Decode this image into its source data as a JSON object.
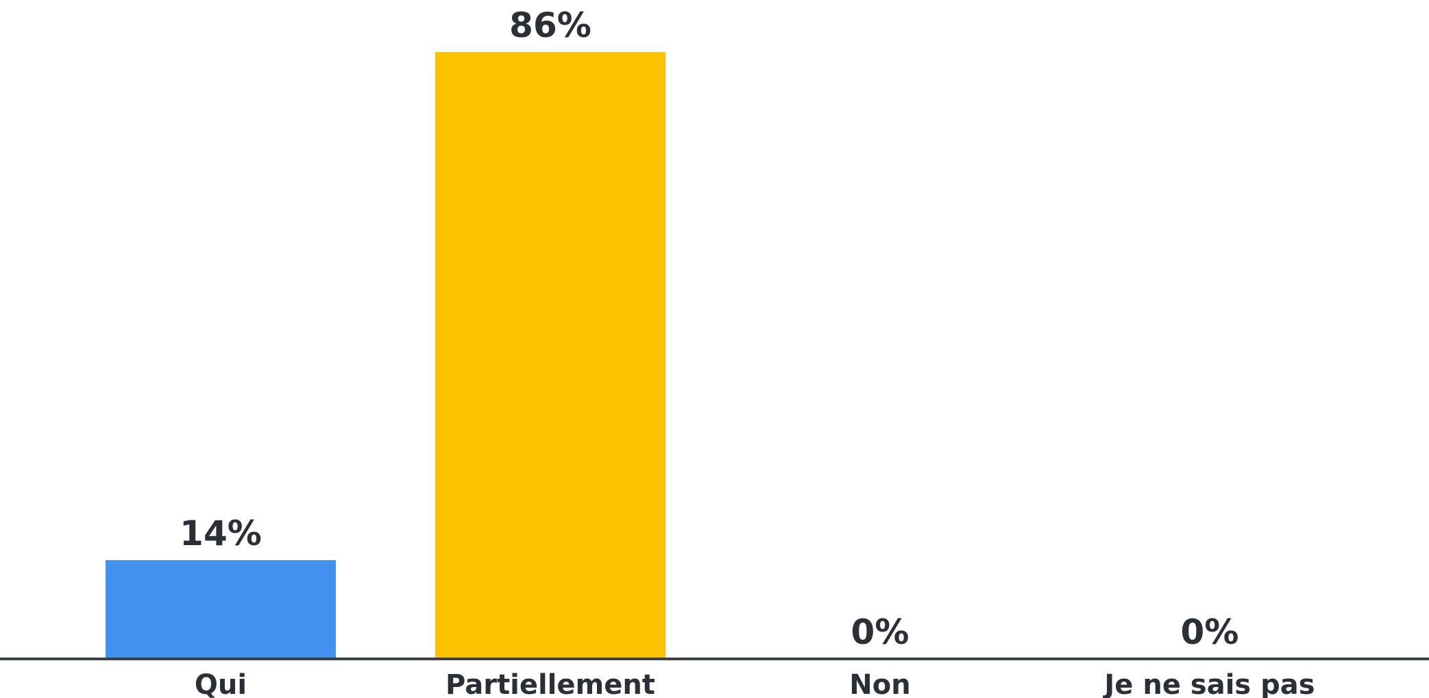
{
  "chart_data": {
    "type": "bar",
    "categories": [
      "Qui",
      "Partiellement",
      "Non",
      "Je ne sais pas"
    ],
    "values": [
      14,
      86,
      0,
      0
    ],
    "data_labels": [
      "14%",
      "86%",
      "0%",
      "0%"
    ],
    "colors": [
      "#4391ee",
      "#fcc200",
      "#4391ee",
      "#4391ee"
    ],
    "axis_color": "#3a3f47",
    "title": "",
    "xlabel": "",
    "ylabel": "",
    "ylim": [
      0,
      86
    ],
    "grid": false,
    "legend": "none"
  }
}
